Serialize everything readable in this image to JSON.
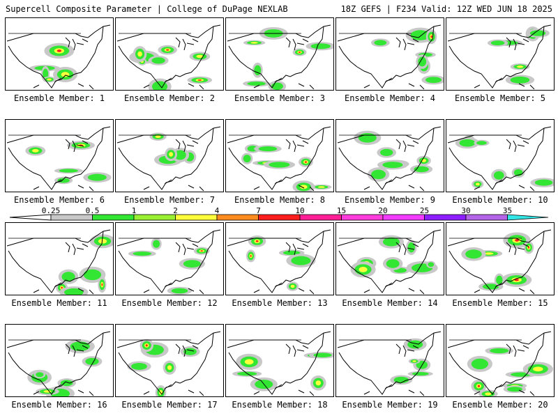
{
  "header": {
    "title_left": "Supercell Composite Parameter | College of DuPage NEXLAB",
    "title_right": "18Z GEFS | F234 Valid: 12Z WED JUN 18 2025"
  },
  "colorbar": {
    "ticks": [
      "0.25",
      "0.5",
      "1",
      "2",
      "4",
      "7",
      "10",
      "15",
      "20",
      "25",
      "30",
      "35"
    ],
    "colors": [
      "#c8c8c8",
      "#33e633",
      "#99f033",
      "#ffff3c",
      "#ff8c1e",
      "#ff1e1e",
      "#ff1e96",
      "#ff3cdc",
      "#f23cff",
      "#8c1eff",
      "#b464e6",
      "#32e6e6"
    ]
  },
  "panels": [
    {
      "label": "Ensemble Member: 1"
    },
    {
      "label": "Ensemble Member: 2"
    },
    {
      "label": "Ensemble Member: 3"
    },
    {
      "label": "Ensemble Member: 4"
    },
    {
      "label": "Ensemble Member: 5"
    },
    {
      "label": "Ensemble Member: 6"
    },
    {
      "label": "Ensemble Member: 7"
    },
    {
      "label": "Ensemble Member: 8"
    },
    {
      "label": "Ensemble Member: 9"
    },
    {
      "label": "Ensemble Member: 10"
    },
    {
      "label": "Ensemble Member: 11"
    },
    {
      "label": "Ensemble Member: 12"
    },
    {
      "label": "Ensemble Member: 13"
    },
    {
      "label": "Ensemble Member: 14"
    },
    {
      "label": "Ensemble Member: 15"
    },
    {
      "label": "Ensemble Member: 16"
    },
    {
      "label": "Ensemble Member: 17"
    },
    {
      "label": "Ensemble Member: 18"
    },
    {
      "label": "Ensemble Member: 19"
    },
    {
      "label": "Ensemble Member: 20"
    }
  ]
}
